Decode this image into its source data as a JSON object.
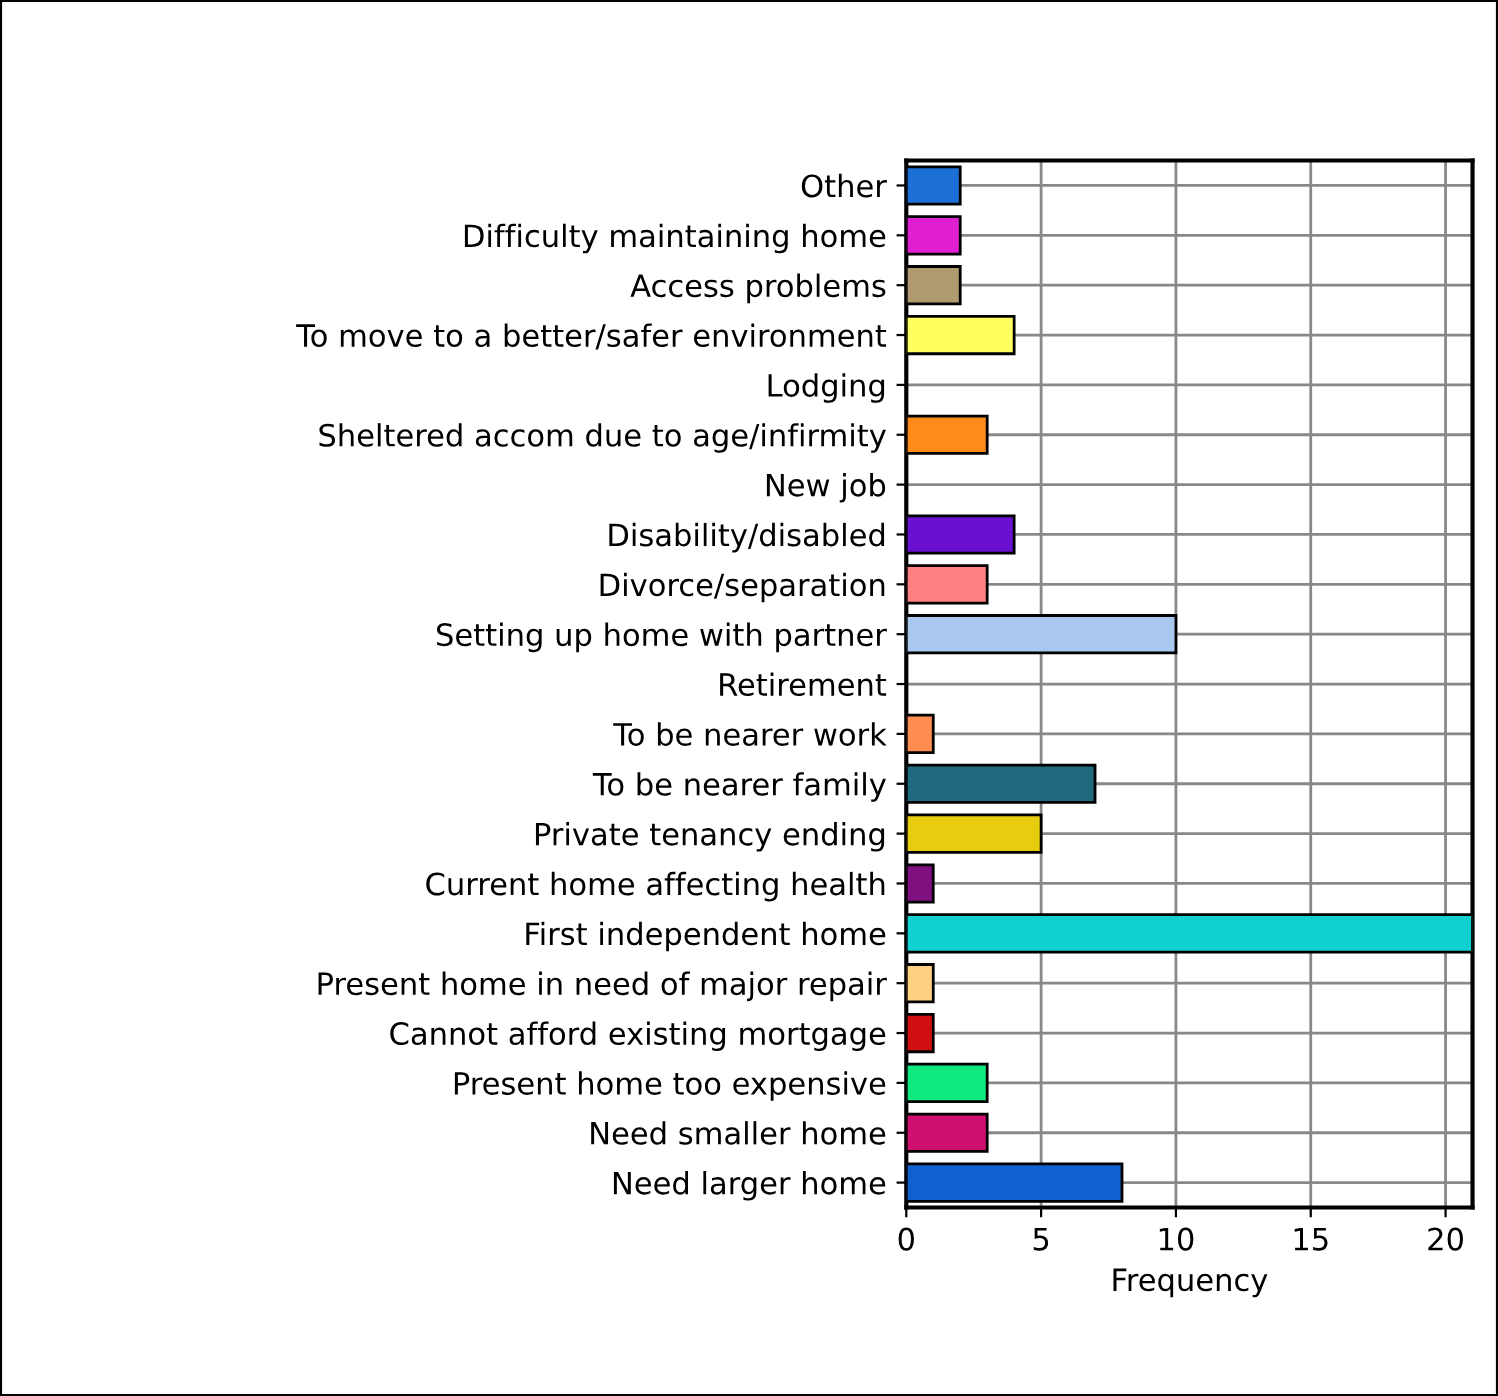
{
  "chart_data": {
    "type": "bar",
    "orientation": "horizontal",
    "xlabel": "Frequency",
    "categories": [
      "Other",
      "Difficulty maintaining home",
      "Access problems",
      "To move to a better/safer environment",
      "Lodging",
      "Sheltered accom due to age/infirmity",
      "New job",
      "Disability/disabled",
      "Divorce/separation",
      "Setting up home with partner",
      "Retirement",
      "To be nearer work",
      "To be nearer family",
      "Private tenancy ending",
      "Current home affecting health",
      "First independent home",
      "Present home in need of major repair",
      "Cannot afford existing mortgage",
      "Present home too expensive",
      "Need smaller home",
      "Need larger home"
    ],
    "values": [
      2,
      2,
      2,
      4,
      0,
      3,
      0,
      4,
      3,
      10,
      0,
      1,
      7,
      5,
      1,
      21,
      1,
      1,
      3,
      3,
      8
    ],
    "colors": [
      "#1c6fd6",
      "#e020d0",
      "#b09a70",
      "#ffff60",
      "#808080",
      "#ff8c1a",
      "#808080",
      "#6a10d0",
      "#ff8080",
      "#a8c8f0",
      "#808080",
      "#ff8c50",
      "#206a80",
      "#e8cc10",
      "#801080",
      "#10d0d0",
      "#ffd080",
      "#d01010",
      "#10e880",
      "#d01070",
      "#1060d0"
    ],
    "xlim": [
      0,
      21
    ],
    "xticks": [
      0,
      5,
      10,
      15,
      20
    ],
    "grid": true
  }
}
